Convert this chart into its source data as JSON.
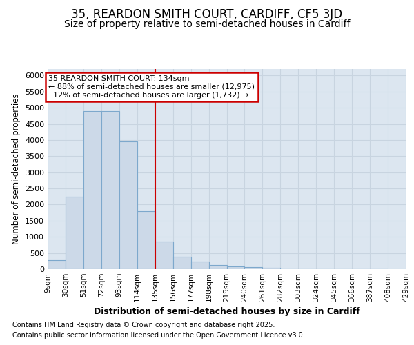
{
  "title_line1": "35, REARDON SMITH COURT, CARDIFF, CF5 3JD",
  "title_line2": "Size of property relative to semi-detached houses in Cardiff",
  "xlabel": "Distribution of semi-detached houses by size in Cardiff",
  "ylabel": "Number of semi-detached properties",
  "footnote1": "Contains HM Land Registry data © Crown copyright and database right 2025.",
  "footnote2": "Contains public sector information licensed under the Open Government Licence v3.0.",
  "property_label": "35 REARDON SMITH COURT: 134sqm",
  "pct_smaller": 88,
  "pct_larger": 12,
  "count_smaller": 12975,
  "count_larger": 1732,
  "bin_edges": [
    9,
    30,
    51,
    72,
    93,
    114,
    135,
    156,
    177,
    198,
    219,
    240,
    261,
    282,
    303,
    324,
    345,
    366,
    387,
    408,
    429
  ],
  "bin_labels": [
    "9sqm",
    "30sqm",
    "51sqm",
    "72sqm",
    "93sqm",
    "114sqm",
    "135sqm",
    "156sqm",
    "177sqm",
    "198sqm",
    "219sqm",
    "240sqm",
    "261sqm",
    "282sqm",
    "303sqm",
    "324sqm",
    "345sqm",
    "366sqm",
    "387sqm",
    "408sqm",
    "429sqm"
  ],
  "bar_heights": [
    270,
    2250,
    4900,
    4900,
    3950,
    1800,
    850,
    380,
    230,
    120,
    80,
    60,
    50,
    10,
    5,
    3,
    2,
    1,
    1,
    0
  ],
  "bar_color": "#ccd9e8",
  "bar_edge_color": "#7da8cc",
  "vline_color": "#cc0000",
  "vline_x": 135,
  "ylim": [
    0,
    6200
  ],
  "yticks": [
    0,
    500,
    1000,
    1500,
    2000,
    2500,
    3000,
    3500,
    4000,
    4500,
    5000,
    5500,
    6000
  ],
  "grid_color": "#c8d4e0",
  "bg_color": "#dce6f0",
  "box_color": "#cc0000",
  "title_fontsize": 12,
  "subtitle_fontsize": 10,
  "footnote_fontsize": 7
}
